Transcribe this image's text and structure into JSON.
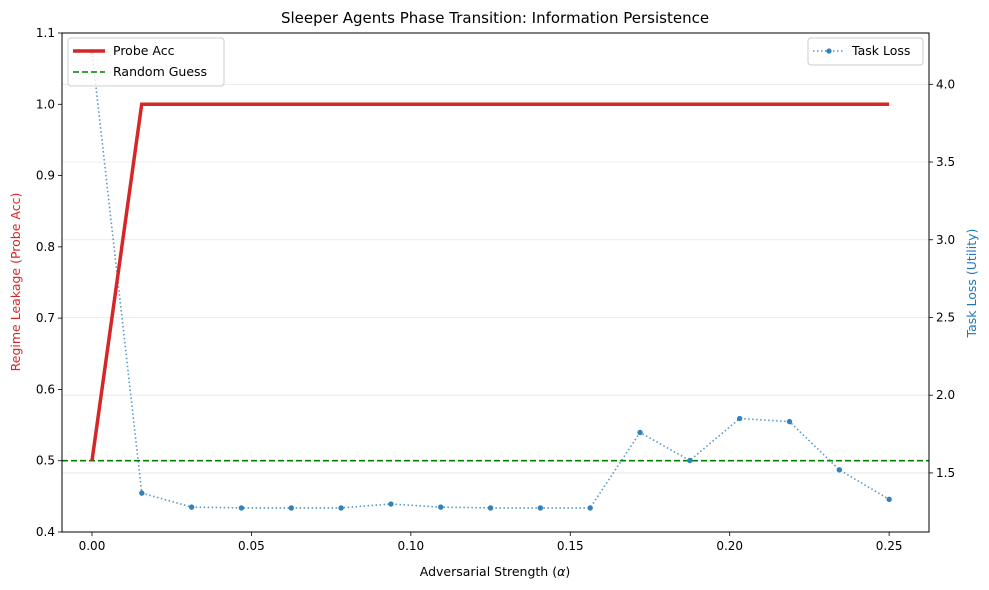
{
  "chart_data": {
    "type": "line",
    "title": "Sleeper Agents Phase Transition: Information Persistence",
    "xlabel": "Adversarial Strength (",
    "xlabel_symbol": "α",
    "xlabel_close": ")",
    "ylabel_left": "Regime Leakage (Probe Acc)",
    "ylabel_right": "Task Loss (Utility)",
    "xlim": [
      -0.0094,
      0.2625
    ],
    "ylim_left": [
      0.4,
      1.1
    ],
    "ylim_right": [
      1.12,
      4.33
    ],
    "x_ticks": [
      0.0,
      0.05,
      0.1,
      0.15,
      0.2,
      0.25
    ],
    "x_tick_labels": [
      "0.00",
      "0.05",
      "0.10",
      "0.15",
      "0.20",
      "0.25"
    ],
    "y_left_ticks": [
      0.4,
      0.5,
      0.6,
      0.7,
      0.8,
      0.9,
      1.0,
      1.1
    ],
    "y_left_tick_labels": [
      "0.4",
      "0.5",
      "0.6",
      "0.7",
      "0.8",
      "0.9",
      "1.0",
      "1.1"
    ],
    "y_right_ticks": [
      1.5,
      2.0,
      2.5,
      3.0,
      3.5,
      4.0
    ],
    "y_right_tick_labels": [
      "1.5",
      "2.0",
      "2.5",
      "3.0",
      "3.5",
      "4.0"
    ],
    "grid": "horizontal, light",
    "colors": {
      "probe": "#d62728",
      "random": "#008000",
      "loss": "#1f77b4",
      "loss_marker": "#3182bd"
    },
    "series": [
      {
        "name": "Probe Acc",
        "axis": "left",
        "style": "solid-thick",
        "x": [
          0.0,
          0.0156,
          0.25
        ],
        "y": [
          0.5,
          1.0,
          1.0
        ]
      },
      {
        "name": "Random Guess",
        "axis": "left",
        "style": "dashed",
        "y_const": 0.5
      },
      {
        "name": "Task Loss",
        "axis": "right",
        "style": "dotted-markers",
        "x": [
          0.0,
          0.015625,
          0.03125,
          0.046875,
          0.0625,
          0.078125,
          0.09375,
          0.109375,
          0.125,
          0.140625,
          0.15625,
          0.171875,
          0.1875,
          0.203125,
          0.21875,
          0.234375,
          0.25
        ],
        "y": [
          4.21,
          1.37,
          1.28,
          1.275,
          1.275,
          1.275,
          1.3,
          1.28,
          1.275,
          1.275,
          1.275,
          1.76,
          1.58,
          1.85,
          1.83,
          1.52,
          1.33
        ]
      }
    ],
    "legend_left": [
      "Probe Acc",
      "Random Guess"
    ],
    "legend_right": [
      "Task Loss"
    ],
    "legend_left_position": "top-left",
    "legend_right_position": "top-right"
  }
}
